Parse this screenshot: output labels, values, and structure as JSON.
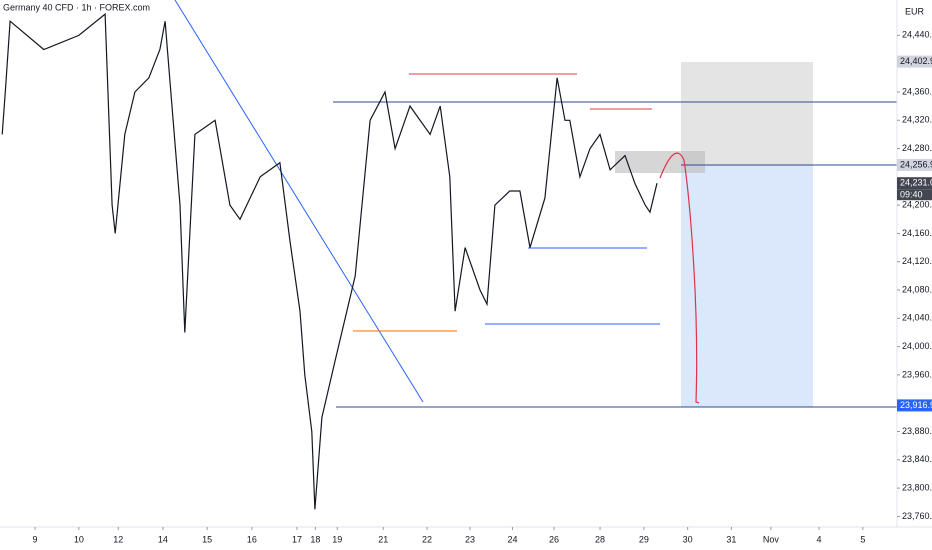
{
  "chart_data": {
    "type": "line",
    "title": "Germany 40 CFD · 1h · FOREX.com",
    "currency": "EUR",
    "series": [
      {
        "name": "Germany 40 CFD",
        "color": "#131722",
        "x": [
          -0.75,
          -0.68,
          -0.57,
          0.2,
          1.0,
          1.6,
          1.76,
          1.83,
          2.05,
          2.28,
          2.6,
          2.85,
          2.97,
          3.31,
          3.42,
          3.65,
          4.11,
          4.45,
          4.68,
          5.14,
          5.59,
          5.82,
          6.05,
          6.16,
          6.32,
          6.39,
          6.55,
          6.85,
          7.31,
          7.65,
          7.99,
          8.22,
          8.56,
          9.02,
          9.25,
          9.47,
          9.59,
          9.82,
          10.16,
          10.32,
          10.5,
          10.84,
          11.07,
          11.3,
          11.64,
          11.92,
          12.1,
          12.21,
          12.44,
          12.67,
          12.9,
          13.13,
          13.47,
          13.7,
          13.93,
          14.04,
          14.2
        ],
        "values": [
          24300,
          24360,
          24460,
          24420,
          24440,
          24470,
          24200,
          24160,
          24300,
          24360,
          24380,
          24420,
          24460,
          24200,
          24020,
          24300,
          24320,
          24200,
          24180,
          24240,
          24260,
          24150,
          24050,
          23960,
          23880,
          23770,
          23900,
          23980,
          24100,
          24320,
          24360,
          24280,
          24340,
          24300,
          24340,
          24240,
          24050,
          24140,
          24080,
          24060,
          24200,
          24220,
          24220,
          24140,
          24210,
          24380,
          24320,
          24320,
          24240,
          24280,
          24300,
          24250,
          24270,
          24230,
          24200,
          24190,
          24231
        ]
      }
    ],
    "xlim": [
      -0.8,
      19.68
    ],
    "xticks": [
      {
        "value": 0,
        "label": "9"
      },
      {
        "value": 1,
        "label": "10"
      },
      {
        "value": 1.9,
        "label": "12"
      },
      {
        "value": 2.92,
        "label": "14"
      },
      {
        "value": 3.93,
        "label": "15"
      },
      {
        "value": 4.95,
        "label": "16"
      },
      {
        "value": 5.98,
        "label": "17"
      },
      {
        "value": 6.4,
        "label": "18"
      },
      {
        "value": 6.9,
        "label": "19"
      },
      {
        "value": 7.95,
        "label": "21"
      },
      {
        "value": 8.95,
        "label": "22"
      },
      {
        "value": 9.93,
        "label": "23"
      },
      {
        "value": 10.9,
        "label": "24"
      },
      {
        "value": 11.85,
        "label": "26"
      },
      {
        "value": 12.9,
        "label": "28"
      },
      {
        "value": 13.9,
        "label": "29"
      },
      {
        "value": 14.9,
        "label": "30"
      },
      {
        "value": 15.9,
        "label": "31"
      },
      {
        "value": 16.8,
        "label": "Nov"
      },
      {
        "value": 17.9,
        "label": "4"
      },
      {
        "value": 18.9,
        "label": "5"
      }
    ],
    "ylim": [
      23745,
      24490
    ],
    "yticks": [
      {
        "value": 23760,
        "label": "23,760.0"
      },
      {
        "value": 23800,
        "label": "23,800.0"
      },
      {
        "value": 23840,
        "label": "23,840.0"
      },
      {
        "value": 23880,
        "label": "23,880.0"
      },
      {
        "value": 23960,
        "label": "23,960.0"
      },
      {
        "value": 24000,
        "label": "24,000.0"
      },
      {
        "value": 24040,
        "label": "24,040.0"
      },
      {
        "value": 24080,
        "label": "24,080.0"
      },
      {
        "value": 24120,
        "label": "24,120.0"
      },
      {
        "value": 24160,
        "label": "24,160.0"
      },
      {
        "value": 24200,
        "label": "24,200.0"
      },
      {
        "value": 24280,
        "label": "24,280.0"
      },
      {
        "value": 24320,
        "label": "24,320.0"
      },
      {
        "value": 24360,
        "label": "24,360.0"
      },
      {
        "value": 24440,
        "label": "24,440.0"
      }
    ],
    "price_labels": [
      {
        "value": 24402.9,
        "label": "24,402.9",
        "color": "#d1d4dc"
      },
      {
        "value": 24256.9,
        "label": "24,256.9",
        "color": "#d1d4dc"
      },
      {
        "value": 24231.0,
        "label": "24,231.0",
        "color": "#434651"
      },
      {
        "value": 23916.9,
        "label": "23,916.9",
        "color": "#2962ff"
      }
    ],
    "countdown": "09:40"
  }
}
